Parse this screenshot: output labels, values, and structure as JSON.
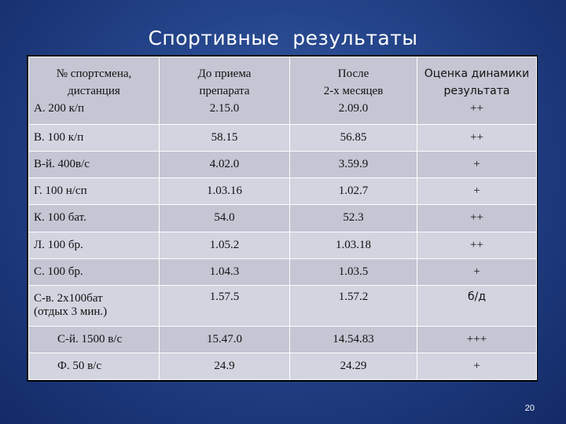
{
  "title": "Спортивные  результаты",
  "headers": {
    "col1_line1": "№ спортсмена,",
    "col1_line2": "дистанция",
    "col2_line1": "До приема",
    "col2_line2": "препарата",
    "col3_line1": "После",
    "col3_line2": "2-х месяцев",
    "col4_line1": "Оценка динамики",
    "col4_line2": "результата"
  },
  "rows": [
    {
      "athlete": "А.  200 к/п",
      "before": "2.15.0",
      "after": "2.09.0",
      "rating": "++"
    },
    {
      "athlete": "В.  100 к/п",
      "before": "58.15",
      "after": "56.85",
      "rating": "++"
    },
    {
      "athlete": "В-й.  400в/с",
      "before": "4.02.0",
      "after": "3.59.9",
      "rating": "+"
    },
    {
      "athlete": "Г.  100 н/сп",
      "before": "1.03.16",
      "after": "1.02.7",
      "rating": "+"
    },
    {
      "athlete": "К.  100 бат.",
      "before": "54.0",
      "after": "52.3",
      "rating": "++"
    },
    {
      "athlete": "Л.   100 бр.",
      "before": "1.05.2",
      "after": "1.03.18",
      "rating": "++"
    },
    {
      "athlete": "С.   100 бр.",
      "before": "1.04.3",
      "after": "1.03.5",
      "rating": "+"
    },
    {
      "athlete_line1": "С-в.  2х100бат",
      "athlete_line2": "(отдых 3 мин.)",
      "before": "1.57.5",
      "after": "1.57.2",
      "rating": "б/д"
    },
    {
      "athlete": "С-й.  1500  в/с",
      "before": "15.47.0",
      "after": "14.54.83",
      "rating": "+++"
    },
    {
      "athlete": "Ф.   50 в/с",
      "before": "24.9",
      "after": "24.29",
      "rating": "+"
    }
  ],
  "page_number": "20"
}
